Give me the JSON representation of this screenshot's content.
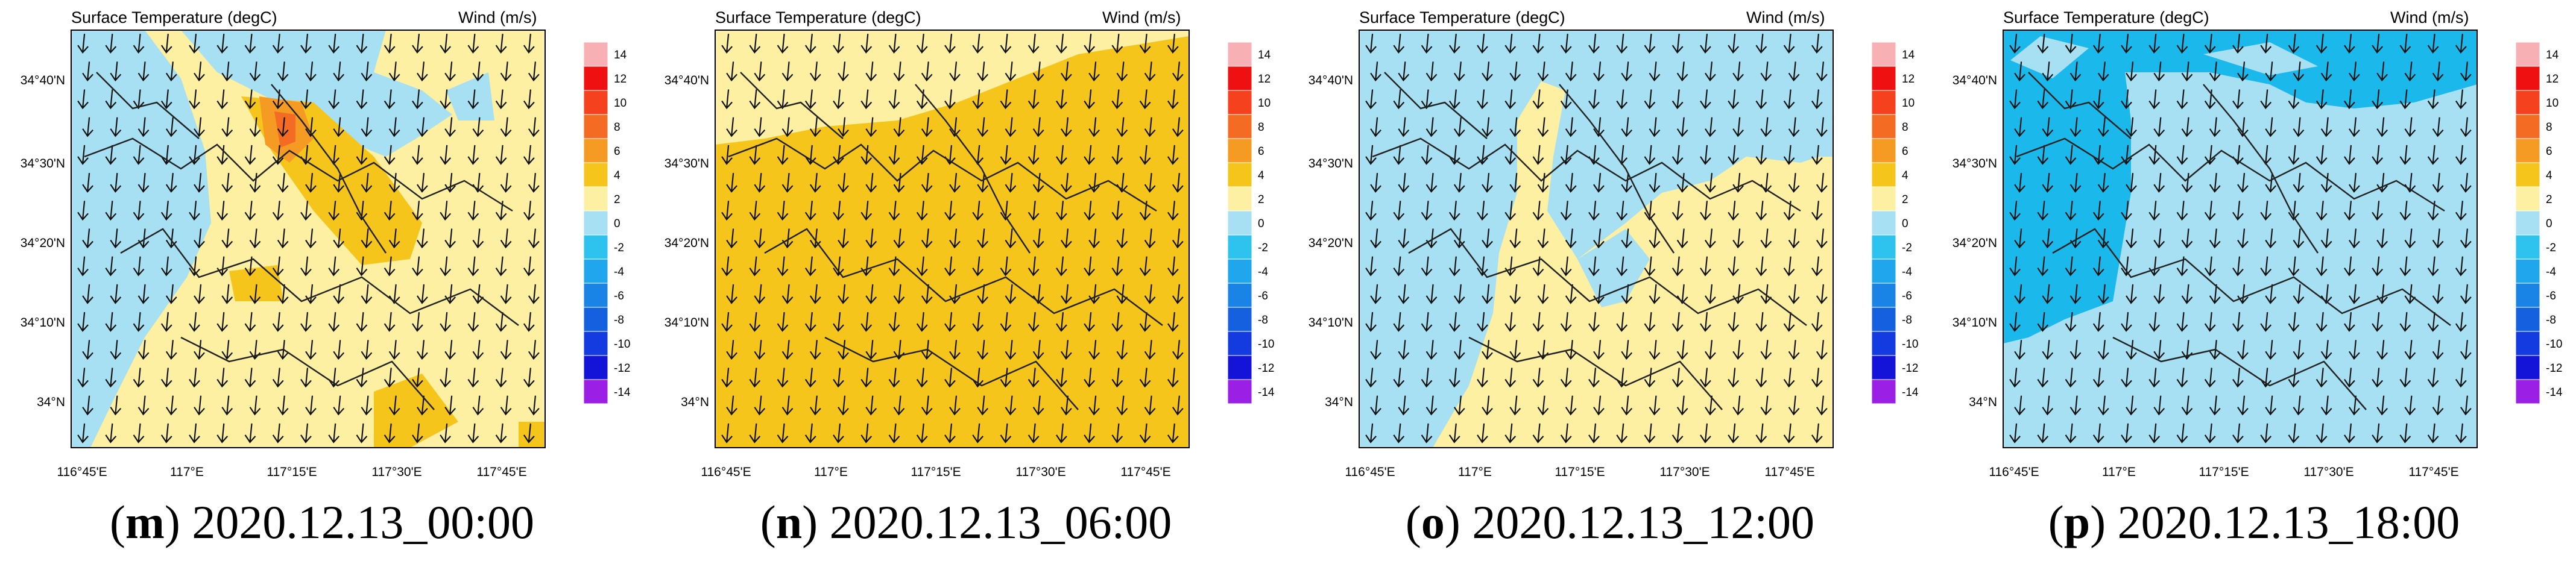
{
  "colors": {
    "levels": [
      {
        "label": "14",
        "color": "#f7b0b4"
      },
      {
        "label": "12",
        "color": "#ef1111"
      },
      {
        "label": "10",
        "color": "#f5411d"
      },
      {
        "label": "8",
        "color": "#f46c24"
      },
      {
        "label": "6",
        "color": "#f59a22"
      },
      {
        "label": "4",
        "color": "#f5c51c"
      },
      {
        "label": "2",
        "color": "#fdf0a3"
      },
      {
        "label": "0",
        "color": "#a7e0f2"
      },
      {
        "label": "-2",
        "color": "#2ec3ef"
      },
      {
        "label": "-4",
        "color": "#1fa6ec"
      },
      {
        "label": "-6",
        "color": "#1a83e6"
      },
      {
        "label": "-8",
        "color": "#1560df"
      },
      {
        "label": "-10",
        "color": "#143be0"
      },
      {
        "label": "-12",
        "color": "#1414d8"
      },
      {
        "label": "-14",
        "color": "#9b1fe4"
      }
    ],
    "cold_dark": "#1ab8eb"
  },
  "colorbar_labels": [
    "14",
    "12",
    "10",
    "8",
    "6",
    "4",
    "2",
    "0",
    "-2",
    "-4",
    "-6",
    "-8",
    "-10",
    "-12",
    "-14"
  ],
  "map_labels": {
    "left_title": "Surface Temperature (degC)",
    "right_title": "Wind (m/s)",
    "lat_ticks": [
      "34°40'N",
      "34°30'N",
      "34°20'N",
      "34°10'N",
      "34°N"
    ],
    "lon_ticks": [
      "116°45'E",
      "117°E",
      "117°15'E",
      "117°30'E",
      "117°45'E"
    ]
  },
  "panels": [
    {
      "letter": "m",
      "time": " 2020.12.13_00:00"
    },
    {
      "letter": "n",
      "time": " 2020.12.13_06:00"
    },
    {
      "letter": "o",
      "time": " 2020.12.13_12:00"
    },
    {
      "letter": "p",
      "time": " 2020.12.13_18:00"
    }
  ]
}
